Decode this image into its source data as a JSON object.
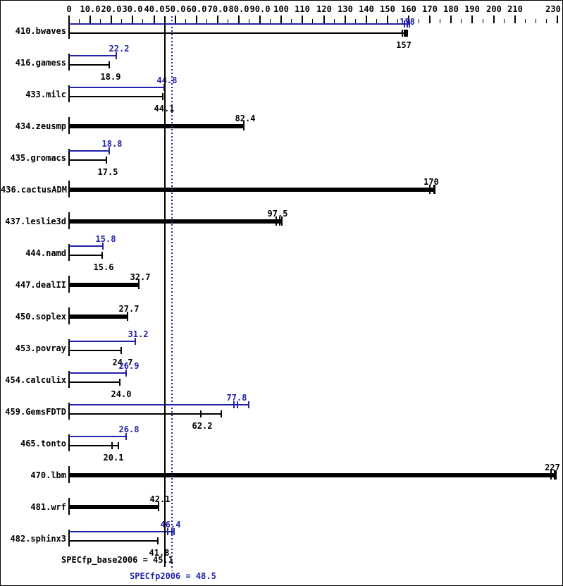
{
  "colors": {
    "peak_blue": "#2222aa",
    "base_black": "#000000",
    "background": "#ffffff"
  },
  "footer": {
    "base_line_label": "SPECfp_base2006 = 45.1",
    "peak_line_label": "SPECfp2006 = 48.5"
  },
  "chart_data": {
    "type": "bar",
    "orientation": "horizontal",
    "title": "",
    "xlabel": "",
    "ylabel": "",
    "xlim": [
      0,
      230
    ],
    "grid": false,
    "axis": {
      "min": 0,
      "max": 230,
      "minor_step": 5,
      "labeled_ticks": [
        {
          "value": 0,
          "label": "0"
        },
        {
          "value": 10,
          "label": "10.0"
        },
        {
          "value": 20,
          "label": "20.0"
        },
        {
          "value": 30,
          "label": "30.0"
        },
        {
          "value": 40,
          "label": "40.0"
        },
        {
          "value": 50,
          "label": "50.0"
        },
        {
          "value": 60,
          "label": "60.0"
        },
        {
          "value": 70,
          "label": "70.0"
        },
        {
          "value": 80,
          "label": "80.0"
        },
        {
          "value": 90,
          "label": "90.0"
        },
        {
          "value": 100,
          "label": "100"
        },
        {
          "value": 110,
          "label": "110"
        },
        {
          "value": 120,
          "label": "120"
        },
        {
          "value": 130,
          "label": "130"
        },
        {
          "value": 140,
          "label": "140"
        },
        {
          "value": 150,
          "label": "150"
        },
        {
          "value": 160,
          "label": "160"
        },
        {
          "value": 170,
          "label": "170"
        },
        {
          "value": 180,
          "label": "180"
        },
        {
          "value": 190,
          "label": "190"
        },
        {
          "value": 200,
          "label": "200"
        },
        {
          "value": 210,
          "label": "210"
        },
        {
          "value": 230,
          "label": "230"
        }
      ]
    },
    "series_meta": [
      {
        "name": "SPECfp2006 (peak)",
        "color": "#2222aa"
      },
      {
        "name": "SPECfp_base2006 (base)",
        "color": "#000000"
      }
    ],
    "reference_lines": [
      {
        "label": "SPECfp_base2006 = 45.1",
        "value": 45.1,
        "color": "#000000",
        "style": "solid"
      },
      {
        "label": "SPECfp2006 = 48.5",
        "value": 48.5,
        "color": "#2222aa",
        "style": "dotted"
      }
    ],
    "benchmarks": [
      {
        "name": "410.bwaves",
        "peak": 158,
        "peak_label": "158",
        "peak_ticks": [
          158,
          159.2
        ],
        "peak_end": 160.2,
        "base": 157,
        "base_label": "157",
        "base_ticks": [
          157,
          157.9,
          158.8
        ],
        "base_end": 159.2
      },
      {
        "name": "416.gamess",
        "peak": 22.2,
        "peak_label": "22.2",
        "base": 18.9,
        "base_label": "18.9"
      },
      {
        "name": "433.milc",
        "peak": 44.8,
        "peak_label": "44.8",
        "base": 44.1,
        "base_label": "44.1"
      },
      {
        "name": "434.zeusmp",
        "base": 82.4,
        "base_label": "82.4",
        "single": true
      },
      {
        "name": "435.gromacs",
        "peak": 18.8,
        "peak_label": "18.8",
        "base": 17.5,
        "base_label": "17.5"
      },
      {
        "name": "436.cactusADM",
        "base": 170,
        "base_label": "170",
        "single": true,
        "base_ticks": [
          170,
          172
        ],
        "base_end": 172.3
      },
      {
        "name": "437.leslie3d",
        "base": 97.5,
        "base_label": "97.5",
        "single": true,
        "base_ticks": [
          97.5,
          99.4
        ],
        "base_end": 100.3
      },
      {
        "name": "444.namd",
        "peak": 15.8,
        "peak_label": "15.8",
        "base": 15.6,
        "base_label": "15.6"
      },
      {
        "name": "447.dealII",
        "base": 32.7,
        "base_label": "32.7",
        "single": true
      },
      {
        "name": "450.soplex",
        "base": 27.7,
        "base_label": "27.7",
        "single": true
      },
      {
        "name": "453.povray",
        "peak": 31.2,
        "peak_label": "31.2",
        "base": 24.7,
        "base_label": "24.7"
      },
      {
        "name": "454.calculix",
        "peak": 26.9,
        "peak_label": "26.9",
        "base": 24.0,
        "base_label": "24.0"
      },
      {
        "name": "459.GemsFDTD",
        "peak": 77.8,
        "peak_label": "77.8",
        "peak_ticks": [
          77.8,
          79.4
        ],
        "peak_end": 84.6,
        "base": 62.2,
        "base_label": "62.2",
        "base_ticks": [
          62.2
        ],
        "base_end": 71.7
      },
      {
        "name": "465.tonto",
        "peak": 26.8,
        "peak_label": "26.8",
        "base": 20.1,
        "base_label": "20.1",
        "base_ticks": [
          20.1
        ],
        "base_end": 23.2
      },
      {
        "name": "470.lbm",
        "base": 227,
        "base_label": "227",
        "single": true,
        "base_ticks": [
          227,
          228.7
        ],
        "base_end": 229.3
      },
      {
        "name": "481.wrf",
        "base": 42.1,
        "base_label": "42.1",
        "single": true
      },
      {
        "name": "482.sphinx3",
        "peak": 46.4,
        "peak_label": "46.4",
        "peak_ticks": [
          46.4,
          48.4
        ],
        "peak_end": 49.3,
        "base": 41.8,
        "base_label": "41.8"
      }
    ]
  }
}
